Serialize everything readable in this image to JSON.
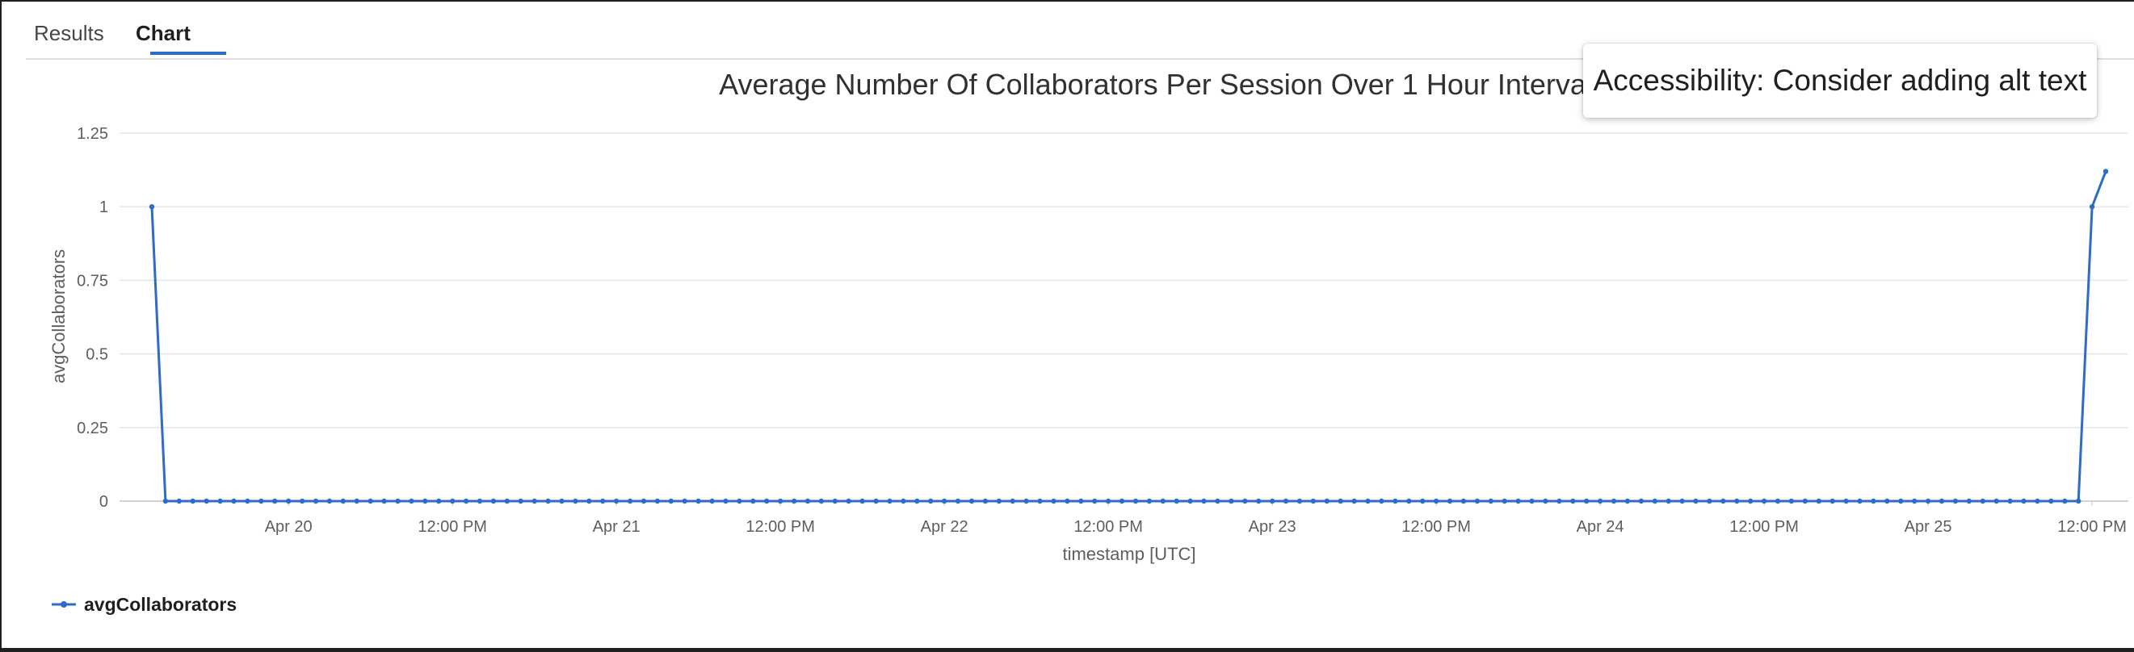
{
  "tabs": [
    {
      "label": "Results",
      "selected": false
    },
    {
      "label": "Chart",
      "selected": true
    }
  ],
  "tooltip": {
    "text": "Accessibility: Consider adding alt text"
  },
  "colors": {
    "series": "#2d6cc7",
    "grid": "#e6e6e6",
    "accent": "#2d6cc7"
  },
  "chart_data": {
    "type": "line",
    "title": "Average Number Of Collaborators Per Session Over 1 Hour Intervals",
    "xlabel": "timestamp [UTC]",
    "ylabel": "avgCollaborators",
    "x_range": [
      "2024-04-19T14:00",
      "2024-04-25T13:00"
    ],
    "x_interval": "1h",
    "xticks": [
      "Apr 20",
      "12:00 PM",
      "Apr 21",
      "12:00 PM",
      "Apr 22",
      "12:00 PM",
      "Apr 23",
      "12:00 PM",
      "Apr 24",
      "12:00 PM",
      "Apr 25",
      "12:00 PM"
    ],
    "yticks": [
      "0",
      "0.25",
      "0.5",
      "0.75",
      "1",
      "1.25"
    ],
    "ylim": [
      0,
      1.25
    ],
    "grid": true,
    "legend": "bottom-left",
    "series": [
      {
        "name": "avgCollaborators",
        "points": [
          {
            "x": "2024-04-19T14:00",
            "y": 1
          },
          {
            "x": "2024-04-19T15:00",
            "y": 0
          },
          {
            "x": "2024-04-25T11:00",
            "y": 0
          },
          {
            "x": "2024-04-25T12:00",
            "y": 1
          },
          {
            "x": "2024-04-25T13:00",
            "y": 1.12
          }
        ],
        "zero_fill": true
      }
    ]
  }
}
